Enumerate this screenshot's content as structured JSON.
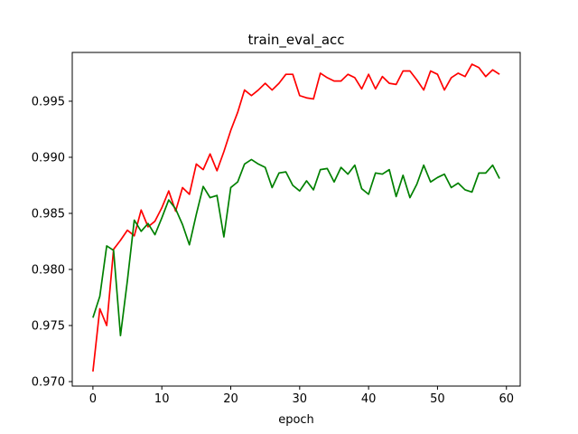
{
  "chart_data": {
    "type": "line",
    "title": "train_eval_acc",
    "xlabel": "epoch",
    "ylabel": "",
    "xlim": [
      -3,
      62
    ],
    "ylim": [
      0.9696,
      0.99935
    ],
    "xticks": [
      0,
      10,
      20,
      30,
      40,
      50,
      60
    ],
    "yticks": [
      0.97,
      0.975,
      0.98,
      0.985,
      0.99,
      0.995
    ],
    "ytick_labels": [
      "0.970",
      "0.975",
      "0.980",
      "0.985",
      "0.990",
      "0.995"
    ],
    "grid": false,
    "x": [
      0,
      1,
      2,
      3,
      4,
      5,
      6,
      7,
      8,
      9,
      10,
      11,
      12,
      13,
      14,
      15,
      16,
      17,
      18,
      19,
      20,
      21,
      22,
      23,
      24,
      25,
      26,
      27,
      28,
      29,
      30,
      31,
      32,
      33,
      34,
      35,
      36,
      37,
      38,
      39,
      40,
      41,
      42,
      43,
      44,
      45,
      46,
      47,
      48,
      49,
      50,
      51,
      52,
      53,
      54,
      55,
      56,
      57,
      58,
      59
    ],
    "series": [
      {
        "color": "#ff0000",
        "values": [
          0.9709,
          0.9765,
          0.975,
          0.9818,
          0.9826,
          0.9835,
          0.983,
          0.9853,
          0.9838,
          0.9843,
          0.9855,
          0.987,
          0.9852,
          0.9873,
          0.9867,
          0.9894,
          0.9889,
          0.9903,
          0.9888,
          0.9905,
          0.9924,
          0.994,
          0.996,
          0.9955,
          0.996,
          0.9966,
          0.996,
          0.9966,
          0.9974,
          0.9974,
          0.9955,
          0.9953,
          0.9952,
          0.9975,
          0.9971,
          0.9968,
          0.9968,
          0.9974,
          0.9971,
          0.9961,
          0.9974,
          0.9961,
          0.9972,
          0.9966,
          0.9965,
          0.9977,
          0.9977,
          0.9969,
          0.996,
          0.9977,
          0.9974,
          0.996,
          0.9971,
          0.9975,
          0.9972,
          0.9983,
          0.998,
          0.9972,
          0.9978,
          0.9974
        ]
      },
      {
        "color": "#008000",
        "values": [
          0.9757,
          0.9776,
          0.9821,
          0.9817,
          0.9741,
          0.979,
          0.9844,
          0.9834,
          0.9841,
          0.9831,
          0.9846,
          0.9862,
          0.9854,
          0.984,
          0.9822,
          0.9849,
          0.9874,
          0.9864,
          0.9866,
          0.9829,
          0.9873,
          0.9878,
          0.9894,
          0.9898,
          0.9894,
          0.9891,
          0.9873,
          0.9886,
          0.9887,
          0.9875,
          0.987,
          0.9879,
          0.9871,
          0.9889,
          0.989,
          0.9878,
          0.9891,
          0.9885,
          0.9893,
          0.9872,
          0.9867,
          0.9886,
          0.9885,
          0.9889,
          0.9865,
          0.9884,
          0.9864,
          0.9876,
          0.9893,
          0.9878,
          0.9882,
          0.9885,
          0.9873,
          0.9877,
          0.9871,
          0.9869,
          0.9886,
          0.9886,
          0.9893,
          0.9881
        ]
      }
    ]
  }
}
